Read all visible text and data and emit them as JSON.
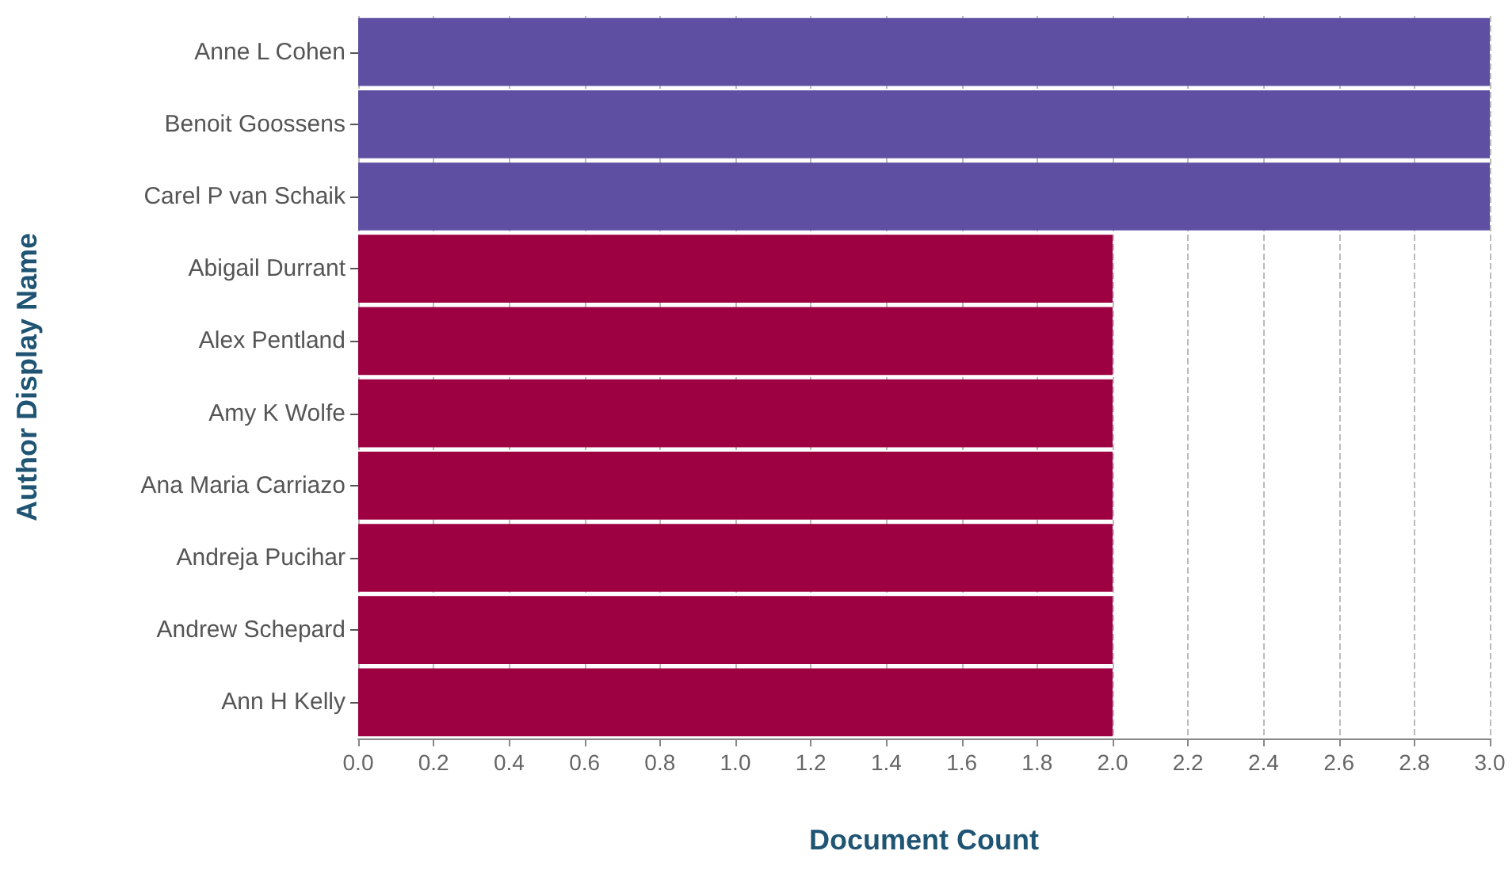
{
  "chart_data": {
    "type": "bar",
    "orientation": "horizontal",
    "xlabel": "Document Count",
    "ylabel": "Author Display Name",
    "categories": [
      "Anne L Cohen",
      "Benoit Goossens",
      "Carel P van Schaik",
      "Abigail Durrant",
      "Alex Pentland",
      "Amy K Wolfe",
      "Ana Maria Carriazo",
      "Andreja Pucihar",
      "Andrew Schepard",
      "Ann H Kelly"
    ],
    "values": [
      3,
      3,
      3,
      2,
      2,
      2,
      2,
      2,
      2,
      2
    ],
    "colors": [
      "#5e4fa2",
      "#5e4fa2",
      "#5e4fa2",
      "#9e0142",
      "#9e0142",
      "#9e0142",
      "#9e0142",
      "#9e0142",
      "#9e0142",
      "#9e0142"
    ],
    "xlim": [
      0,
      3
    ],
    "xticks": [
      {
        "value": 0,
        "label": "0.0"
      },
      0.2,
      0.4,
      0.6,
      0.8,
      {
        "value": 1,
        "label": "1.0"
      },
      1.2,
      1.4,
      1.6,
      1.8,
      {
        "value": 2,
        "label": "2.0"
      },
      2.2,
      2.4,
      2.6,
      2.8,
      {
        "value": 3,
        "label": "3.0"
      }
    ],
    "grid": "x"
  }
}
